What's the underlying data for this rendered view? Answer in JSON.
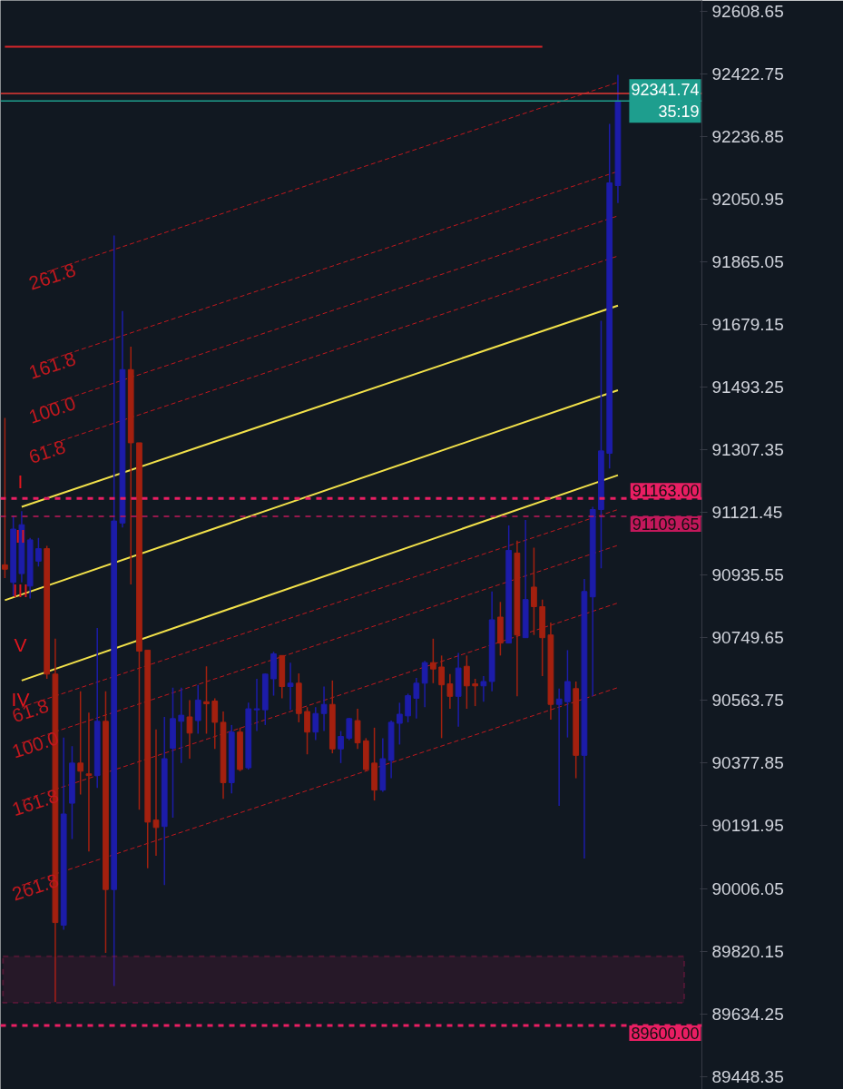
{
  "chart_data": {
    "type": "candlestick",
    "categories": [
      null,
      null,
      null,
      null,
      null,
      null,
      null,
      null,
      null,
      null,
      null,
      null,
      null,
      null,
      null,
      null,
      null,
      null,
      null,
      null,
      null,
      null,
      null,
      null,
      null,
      null,
      null,
      null,
      null,
      null,
      null,
      null,
      null,
      null,
      null,
      null,
      null,
      null,
      null,
      null,
      null,
      null,
      null,
      null,
      null,
      null,
      null,
      null,
      null,
      null,
      null,
      null,
      null,
      null,
      null,
      null,
      null,
      null,
      null,
      null,
      null,
      null,
      null,
      null,
      null,
      null,
      null,
      null,
      null,
      null,
      null,
      null,
      null,
      null
    ],
    "ohlc": [
      [
        90966,
        91402,
        90927,
        90953
      ],
      [
        90914,
        91112,
        90874,
        91072
      ],
      [
        90940,
        91125,
        90914,
        91085
      ],
      [
        90903,
        91046,
        90866,
        91040
      ],
      [
        90977,
        91046,
        90961,
        91014
      ],
      [
        91014,
        91022,
        90628,
        90642
      ],
      [
        90642,
        90747,
        89670,
        89905
      ],
      [
        89897,
        90454,
        89884,
        90227
      ],
      [
        90259,
        90428,
        90153,
        90378
      ],
      [
        90378,
        90591,
        90285,
        90354
      ],
      [
        90346,
        90528,
        90116,
        90341
      ],
      [
        90341,
        90779,
        90304,
        90502
      ],
      [
        90502,
        90591,
        89815,
        90003
      ],
      [
        90003,
        91943,
        89717,
        91096
      ],
      [
        91090,
        91719,
        91077,
        91545
      ],
      [
        91545,
        91613,
        90908,
        91328
      ],
      [
        91328,
        91328,
        90240,
        90710
      ],
      [
        90713,
        90713,
        90066,
        90203
      ],
      [
        90209,
        90478,
        90103,
        90187
      ],
      [
        90190,
        90515,
        90016,
        90391
      ],
      [
        90422,
        90602,
        90216,
        90510
      ],
      [
        90502,
        90602,
        90378,
        90520
      ],
      [
        90515,
        90565,
        90391,
        90467
      ],
      [
        90504,
        90610,
        90465,
        90565
      ],
      [
        90560,
        90665,
        90465,
        90554
      ],
      [
        90562,
        90570,
        90420,
        90499
      ],
      [
        90499,
        90531,
        90272,
        90320
      ],
      [
        90320,
        90491,
        90288,
        90470
      ],
      [
        90470,
        90483,
        90354,
        90359
      ],
      [
        90364,
        90557,
        90359,
        90539
      ],
      [
        90536,
        90628,
        90473,
        90539
      ],
      [
        90536,
        90644,
        90491,
        90642
      ],
      [
        90628,
        90708,
        90578,
        90702
      ],
      [
        90697,
        90697,
        90570,
        90605
      ],
      [
        90605,
        90676,
        90536,
        90615
      ],
      [
        90615,
        90644,
        90499,
        90525
      ],
      [
        90531,
        90544,
        90404,
        90470
      ],
      [
        90470,
        90544,
        90446,
        90525
      ],
      [
        90525,
        90605,
        90473,
        90552
      ],
      [
        90552,
        90623,
        90407,
        90420
      ],
      [
        90420,
        90473,
        90378,
        90457
      ],
      [
        90452,
        90512,
        90446,
        90510
      ],
      [
        90504,
        90539,
        90420,
        90438
      ],
      [
        90444,
        90452,
        90354,
        90359
      ],
      [
        90378,
        90483,
        90267,
        90298
      ],
      [
        90298,
        90452,
        90293,
        90391
      ],
      [
        90386,
        90504,
        90333,
        90499
      ],
      [
        90496,
        90557,
        90433,
        90523
      ],
      [
        90518,
        90584,
        90499,
        90578
      ],
      [
        90570,
        90631,
        90510,
        90615
      ],
      [
        90615,
        90681,
        90544,
        90676
      ],
      [
        90676,
        90747,
        90615,
        90657
      ],
      [
        90663,
        90697,
        90452,
        90610
      ],
      [
        90613,
        90642,
        90539,
        90576
      ],
      [
        90576,
        90705,
        90486,
        90660
      ],
      [
        90665,
        90697,
        90539,
        90607
      ],
      [
        90613,
        90628,
        90547,
        90607
      ],
      [
        90607,
        90636,
        90560,
        90620
      ],
      [
        90620,
        90887,
        90591,
        90803
      ],
      [
        90811,
        90856,
        90697,
        90734
      ],
      [
        90734,
        91083,
        90734,
        91009
      ],
      [
        91001,
        91038,
        90576,
        90758
      ],
      [
        90750,
        91099,
        90750,
        90863
      ],
      [
        90900,
        91017,
        90758,
        90842
      ],
      [
        90842,
        90863,
        90636,
        90750
      ],
      [
        90758,
        90795,
        90507,
        90552
      ],
      [
        90552,
        90599,
        90251,
        90568
      ],
      [
        90560,
        90713,
        90454,
        90620
      ],
      [
        90599,
        90620,
        90333,
        90401
      ],
      [
        90401,
        90924,
        90095,
        90887
      ],
      [
        90871,
        91138,
        90576,
        91130
      ],
      [
        91130,
        91690,
        90956,
        91304
      ],
      [
        91297,
        92274,
        91252,
        92099
      ],
      [
        92091,
        92419,
        92039,
        92342
      ]
    ],
    "colors": [
      "#a3200f",
      "#1c1ca8",
      "#1c1ca8",
      "#1c1ca8",
      "#1c1ca8",
      "#a3200f",
      "#a3200f",
      "#1c1ca8",
      "#1c1ca8",
      "#a3200f",
      "#a3200f",
      "#1c1ca8",
      "#a3200f",
      "#1c1ca8",
      "#1c1ca8",
      "#a3200f",
      "#a3200f",
      "#a3200f",
      "#a3200f",
      "#1c1ca8",
      "#1c1ca8",
      "#1c1ca8",
      "#a3200f",
      "#1c1ca8",
      "#a3200f",
      "#a3200f",
      "#a3200f",
      "#1c1ca8",
      "#a3200f",
      "#1c1ca8",
      "#1c1ca8",
      "#1c1ca8",
      "#1c1ca8",
      "#a3200f",
      "#1c1ca8",
      "#a3200f",
      "#a3200f",
      "#1c1ca8",
      "#1c1ca8",
      "#a3200f",
      "#1c1ca8",
      "#1c1ca8",
      "#a3200f",
      "#a3200f",
      "#a3200f",
      "#1c1ca8",
      "#1c1ca8",
      "#1c1ca8",
      "#1c1ca8",
      "#1c1ca8",
      "#1c1ca8",
      "#a3200f",
      "#a3200f",
      "#a3200f",
      "#1c1ca8",
      "#a3200f",
      "#a3200f",
      "#1c1ca8",
      "#1c1ca8",
      "#a3200f",
      "#1c1ca8",
      "#a3200f",
      "#1c1ca8",
      "#a3200f",
      "#a3200f",
      "#a3200f",
      "#1c1ca8",
      "#1c1ca8",
      "#a3200f",
      "#1c1ca8",
      "#1c1ca8",
      "#1c1ca8",
      "#1c1ca8",
      "#1c1ca8"
    ],
    "ylim": [
      89410,
      92640
    ],
    "yticks": [
      89448.35,
      89634.25,
      89820.15,
      90006.05,
      90191.95,
      90377.85,
      90563.75,
      90749.65,
      90935.55,
      91121.45,
      91307.35,
      91493.25,
      91679.15,
      91865.05,
      92050.95,
      92236.85,
      92422.75,
      92608.65
    ],
    "tick_labels": "y",
    "grid": false,
    "series": [
      {
        "type": "line",
        "color": "#f2e14a",
        "values": [
          null,
          null,
          91138,
          null,
          null,
          null,
          null,
          null,
          null,
          null,
          null,
          null,
          null,
          null,
          null,
          null,
          null,
          null,
          null,
          null,
          null,
          null,
          null,
          null,
          null,
          null,
          null,
          null,
          null,
          null,
          null,
          null,
          null,
          null,
          null,
          null,
          null,
          null,
          null,
          null,
          null,
          null,
          null,
          null,
          null,
          null,
          null,
          null,
          null,
          null,
          null,
          null,
          null,
          null,
          null,
          null,
          null,
          null,
          null,
          null,
          null,
          null,
          null,
          null,
          null,
          null,
          null,
          null,
          null,
          null,
          null,
          null,
          null,
          91735
        ]
      },
      {
        "type": "line",
        "color": "#f2e14a",
        "values": [
          90861,
          null,
          null,
          null,
          null,
          null,
          null,
          null,
          null,
          null,
          null,
          null,
          null,
          null,
          null,
          null,
          null,
          null,
          null,
          null,
          null,
          null,
          null,
          null,
          null,
          null,
          null,
          null,
          null,
          null,
          null,
          null,
          null,
          null,
          null,
          null,
          null,
          null,
          null,
          null,
          null,
          null,
          null,
          null,
          null,
          null,
          null,
          null,
          null,
          null,
          null,
          null,
          null,
          null,
          null,
          null,
          null,
          null,
          null,
          null,
          null,
          null,
          null,
          null,
          null,
          null,
          null,
          null,
          null,
          null,
          null,
          null,
          null,
          91484
        ]
      },
      {
        "type": "line",
        "color": "#f2e14a",
        "values": [
          null,
          null,
          90623,
          null,
          null,
          null,
          null,
          null,
          null,
          null,
          null,
          null,
          null,
          null,
          null,
          null,
          null,
          null,
          null,
          null,
          null,
          null,
          null,
          null,
          null,
          null,
          null,
          null,
          null,
          null,
          null,
          null,
          null,
          null,
          null,
          null,
          null,
          null,
          null,
          null,
          null,
          null,
          null,
          null,
          null,
          null,
          null,
          null,
          null,
          null,
          null,
          null,
          null,
          null,
          null,
          null,
          null,
          null,
          null,
          null,
          null,
          null,
          null,
          null,
          null,
          null,
          null,
          null,
          null,
          null,
          null,
          null,
          null,
          91232
        ]
      },
      {
        "type": "line",
        "color": "#d8262a",
        "values": [
          92503,
          null,
          null,
          null,
          null,
          null,
          null,
          null,
          null,
          null,
          null,
          null,
          null,
          null,
          null,
          null,
          null,
          null,
          null,
          null,
          null,
          null,
          null,
          null,
          null,
          null,
          null,
          null,
          null,
          null,
          null,
          null,
          null,
          null,
          null,
          null,
          null,
          null,
          null,
          null,
          null,
          null,
          null,
          null,
          null,
          null,
          null,
          null,
          null,
          null,
          null,
          null,
          null,
          null,
          null,
          null,
          null,
          null,
          null,
          null,
          null,
          null,
          null,
          null,
          92503,
          null,
          null,
          null,
          null,
          null,
          null,
          null,
          null,
          null
        ]
      },
      {
        "type": "line",
        "name": "261.8",
        "color": "#c0181e",
        "line_style": "dashed",
        "values": [
          null,
          null,
          null,
          null,
          91827,
          null,
          null,
          null,
          null,
          null,
          null,
          null,
          null,
          null,
          null,
          null,
          null,
          null,
          null,
          null,
          null,
          null,
          null,
          null,
          null,
          null,
          null,
          null,
          null,
          null,
          null,
          null,
          null,
          null,
          null,
          null,
          null,
          null,
          null,
          null,
          null,
          null,
          null,
          null,
          null,
          null,
          null,
          null,
          null,
          null,
          null,
          null,
          null,
          null,
          null,
          null,
          null,
          null,
          null,
          null,
          null,
          null,
          null,
          null,
          null,
          null,
          null,
          null,
          null,
          null,
          null,
          null,
          null,
          92397
        ]
      },
      {
        "type": "line",
        "name": "161.8",
        "color": "#c0181e",
        "line_style": "dashed",
        "values": [
          null,
          null,
          null,
          null,
          91563,
          null,
          null,
          null,
          null,
          null,
          null,
          null,
          null,
          null,
          null,
          null,
          null,
          null,
          null,
          null,
          null,
          null,
          null,
          null,
          null,
          null,
          null,
          null,
          null,
          null,
          null,
          null,
          null,
          null,
          null,
          null,
          null,
          null,
          null,
          null,
          null,
          null,
          null,
          null,
          null,
          null,
          null,
          null,
          null,
          null,
          null,
          null,
          null,
          null,
          null,
          null,
          null,
          null,
          null,
          null,
          null,
          null,
          null,
          null,
          null,
          null,
          null,
          null,
          null,
          null,
          null,
          null,
          null,
          92133
        ]
      },
      {
        "type": "line",
        "name": "100.0",
        "color": "#c0181e",
        "line_style": "dashed",
        "values": [
          null,
          null,
          null,
          null,
          91431,
          null,
          null,
          null,
          null,
          null,
          null,
          null,
          null,
          null,
          null,
          null,
          null,
          null,
          null,
          null,
          null,
          null,
          null,
          null,
          null,
          null,
          null,
          null,
          null,
          null,
          null,
          null,
          null,
          null,
          null,
          null,
          null,
          null,
          null,
          null,
          null,
          null,
          null,
          null,
          null,
          null,
          null,
          null,
          null,
          null,
          null,
          null,
          null,
          null,
          null,
          null,
          null,
          null,
          null,
          null,
          null,
          null,
          null,
          null,
          null,
          null,
          null,
          null,
          null,
          null,
          null,
          null,
          null,
          92001
        ]
      },
      {
        "type": "line",
        "name": "61.8",
        "color": "#c0181e",
        "line_style": "dashed",
        "values": [
          null,
          null,
          null,
          null,
          91312,
          null,
          null,
          null,
          null,
          null,
          null,
          null,
          null,
          null,
          null,
          null,
          null,
          null,
          null,
          null,
          null,
          null,
          null,
          null,
          null,
          null,
          null,
          null,
          null,
          null,
          null,
          null,
          null,
          null,
          null,
          null,
          null,
          null,
          null,
          null,
          null,
          null,
          null,
          null,
          null,
          null,
          null,
          null,
          null,
          null,
          null,
          null,
          null,
          null,
          null,
          null,
          null,
          null,
          null,
          null,
          null,
          null,
          null,
          null,
          null,
          null,
          null,
          null,
          null,
          null,
          null,
          null,
          null,
          91882
        ]
      },
      {
        "type": "line",
        "name": "61.8",
        "color": "#c0181e",
        "line_style": "dashed",
        "values": [
          null,
          null,
          90544,
          null,
          null,
          null,
          null,
          null,
          null,
          null,
          null,
          null,
          null,
          null,
          null,
          null,
          null,
          null,
          null,
          null,
          null,
          null,
          null,
          null,
          null,
          null,
          null,
          null,
          null,
          null,
          null,
          null,
          null,
          null,
          null,
          null,
          null,
          null,
          null,
          null,
          null,
          null,
          null,
          null,
          null,
          null,
          null,
          null,
          null,
          null,
          null,
          null,
          null,
          null,
          null,
          null,
          null,
          null,
          null,
          null,
          null,
          null,
          null,
          null,
          null,
          null,
          null,
          null,
          null,
          null,
          null,
          null,
          null,
          91130
        ]
      },
      {
        "type": "line",
        "name": "100.0",
        "color": "#c0181e",
        "line_style": "dashed",
        "values": [
          null,
          null,
          90438,
          null,
          null,
          null,
          null,
          null,
          null,
          null,
          null,
          null,
          null,
          null,
          null,
          null,
          null,
          null,
          null,
          null,
          null,
          null,
          null,
          null,
          null,
          null,
          null,
          null,
          null,
          null,
          null,
          null,
          null,
          null,
          null,
          null,
          null,
          null,
          null,
          null,
          null,
          null,
          null,
          null,
          null,
          null,
          null,
          null,
          null,
          null,
          null,
          null,
          null,
          null,
          null,
          null,
          null,
          null,
          null,
          null,
          null,
          null,
          null,
          null,
          null,
          null,
          null,
          null,
          null,
          null,
          null,
          null,
          null,
          91024
        ]
      },
      {
        "type": "line",
        "name": "161.8",
        "color": "#c0181e",
        "line_style": "dashed",
        "values": [
          null,
          null,
          90267,
          null,
          null,
          null,
          null,
          null,
          null,
          null,
          null,
          null,
          null,
          null,
          null,
          null,
          null,
          null,
          null,
          null,
          null,
          null,
          null,
          null,
          null,
          null,
          null,
          null,
          null,
          null,
          null,
          null,
          null,
          null,
          null,
          null,
          null,
          null,
          null,
          null,
          null,
          null,
          null,
          null,
          null,
          null,
          null,
          null,
          null,
          null,
          null,
          null,
          null,
          null,
          null,
          null,
          null,
          null,
          null,
          null,
          null,
          null,
          null,
          null,
          null,
          null,
          null,
          null,
          null,
          null,
          null,
          null,
          null,
          90853
        ]
      },
      {
        "type": "line",
        "name": "261.8",
        "color": "#c0181e",
        "line_style": "dashed",
        "values": [
          null,
          null,
          90016,
          null,
          null,
          null,
          null,
          null,
          null,
          null,
          null,
          null,
          null,
          null,
          null,
          null,
          null,
          null,
          null,
          null,
          null,
          null,
          null,
          null,
          null,
          null,
          null,
          null,
          null,
          null,
          null,
          null,
          null,
          null,
          null,
          null,
          null,
          null,
          null,
          null,
          null,
          null,
          null,
          null,
          null,
          null,
          null,
          null,
          null,
          null,
          null,
          null,
          null,
          null,
          null,
          null,
          null,
          null,
          null,
          null,
          null,
          null,
          null,
          null,
          null,
          null,
          null,
          null,
          null,
          null,
          null,
          null,
          null,
          90602
        ]
      }
    ],
    "ref_lines": [
      {
        "axis": "y",
        "value": 92364,
        "color": "#e53935"
      },
      {
        "axis": "y",
        "value": 92341.74,
        "label": "92341.74\n35:19",
        "color": "#1e9e8e"
      },
      {
        "axis": "y",
        "value": 91163.0,
        "label": "91163.00",
        "color": "#e91e63",
        "line_style": "dashed"
      },
      {
        "axis": "y",
        "value": 91109.65,
        "label": "91109.65",
        "color": "#c2185b",
        "line_style": "dashed"
      },
      {
        "axis": "y",
        "value": 89600.0,
        "label": "89600.00",
        "color": "#e91e63",
        "line_style": "dashed"
      }
    ],
    "bands": [
      {
        "axis": "y",
        "from": 89667,
        "to": 89805,
        "color": "#c2185b"
      }
    ],
    "annotations": [
      "I",
      "II",
      "III",
      "V",
      "IV"
    ]
  }
}
